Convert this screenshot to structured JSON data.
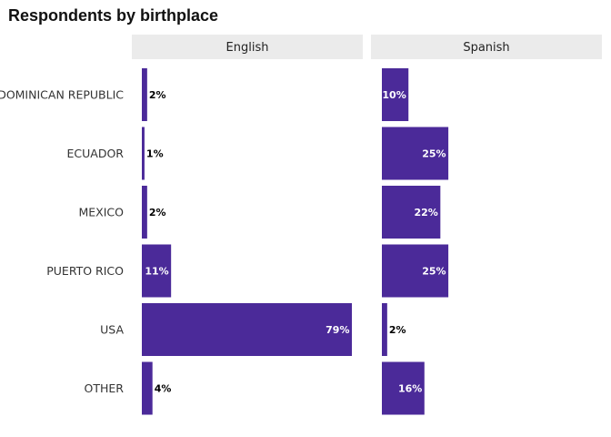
{
  "chart_data": {
    "type": "bar",
    "orientation": "horizontal",
    "title": "Respondents by birthplace",
    "categories": [
      "DOMINICAN REPUBLIC",
      "ECUADOR",
      "MEXICO",
      "PUERTO RICO",
      "USA",
      "OTHER"
    ],
    "panels": [
      {
        "name": "English",
        "values": [
          2,
          1,
          2,
          11,
          79,
          4
        ],
        "labels": [
          "2%",
          "1%",
          "2%",
          "11%",
          "79%",
          "4%"
        ]
      },
      {
        "name": "Spanish",
        "values": [
          10,
          25,
          22,
          25,
          2,
          16
        ],
        "labels": [
          "10%",
          "25%",
          "22%",
          "25%",
          "2%",
          "16%"
        ]
      }
    ],
    "xlim": [
      0,
      85
    ],
    "grid": false,
    "bar_color": "#4b2a99",
    "label_inside_color": "#ffffff",
    "label_outside_color": "#000000"
  }
}
